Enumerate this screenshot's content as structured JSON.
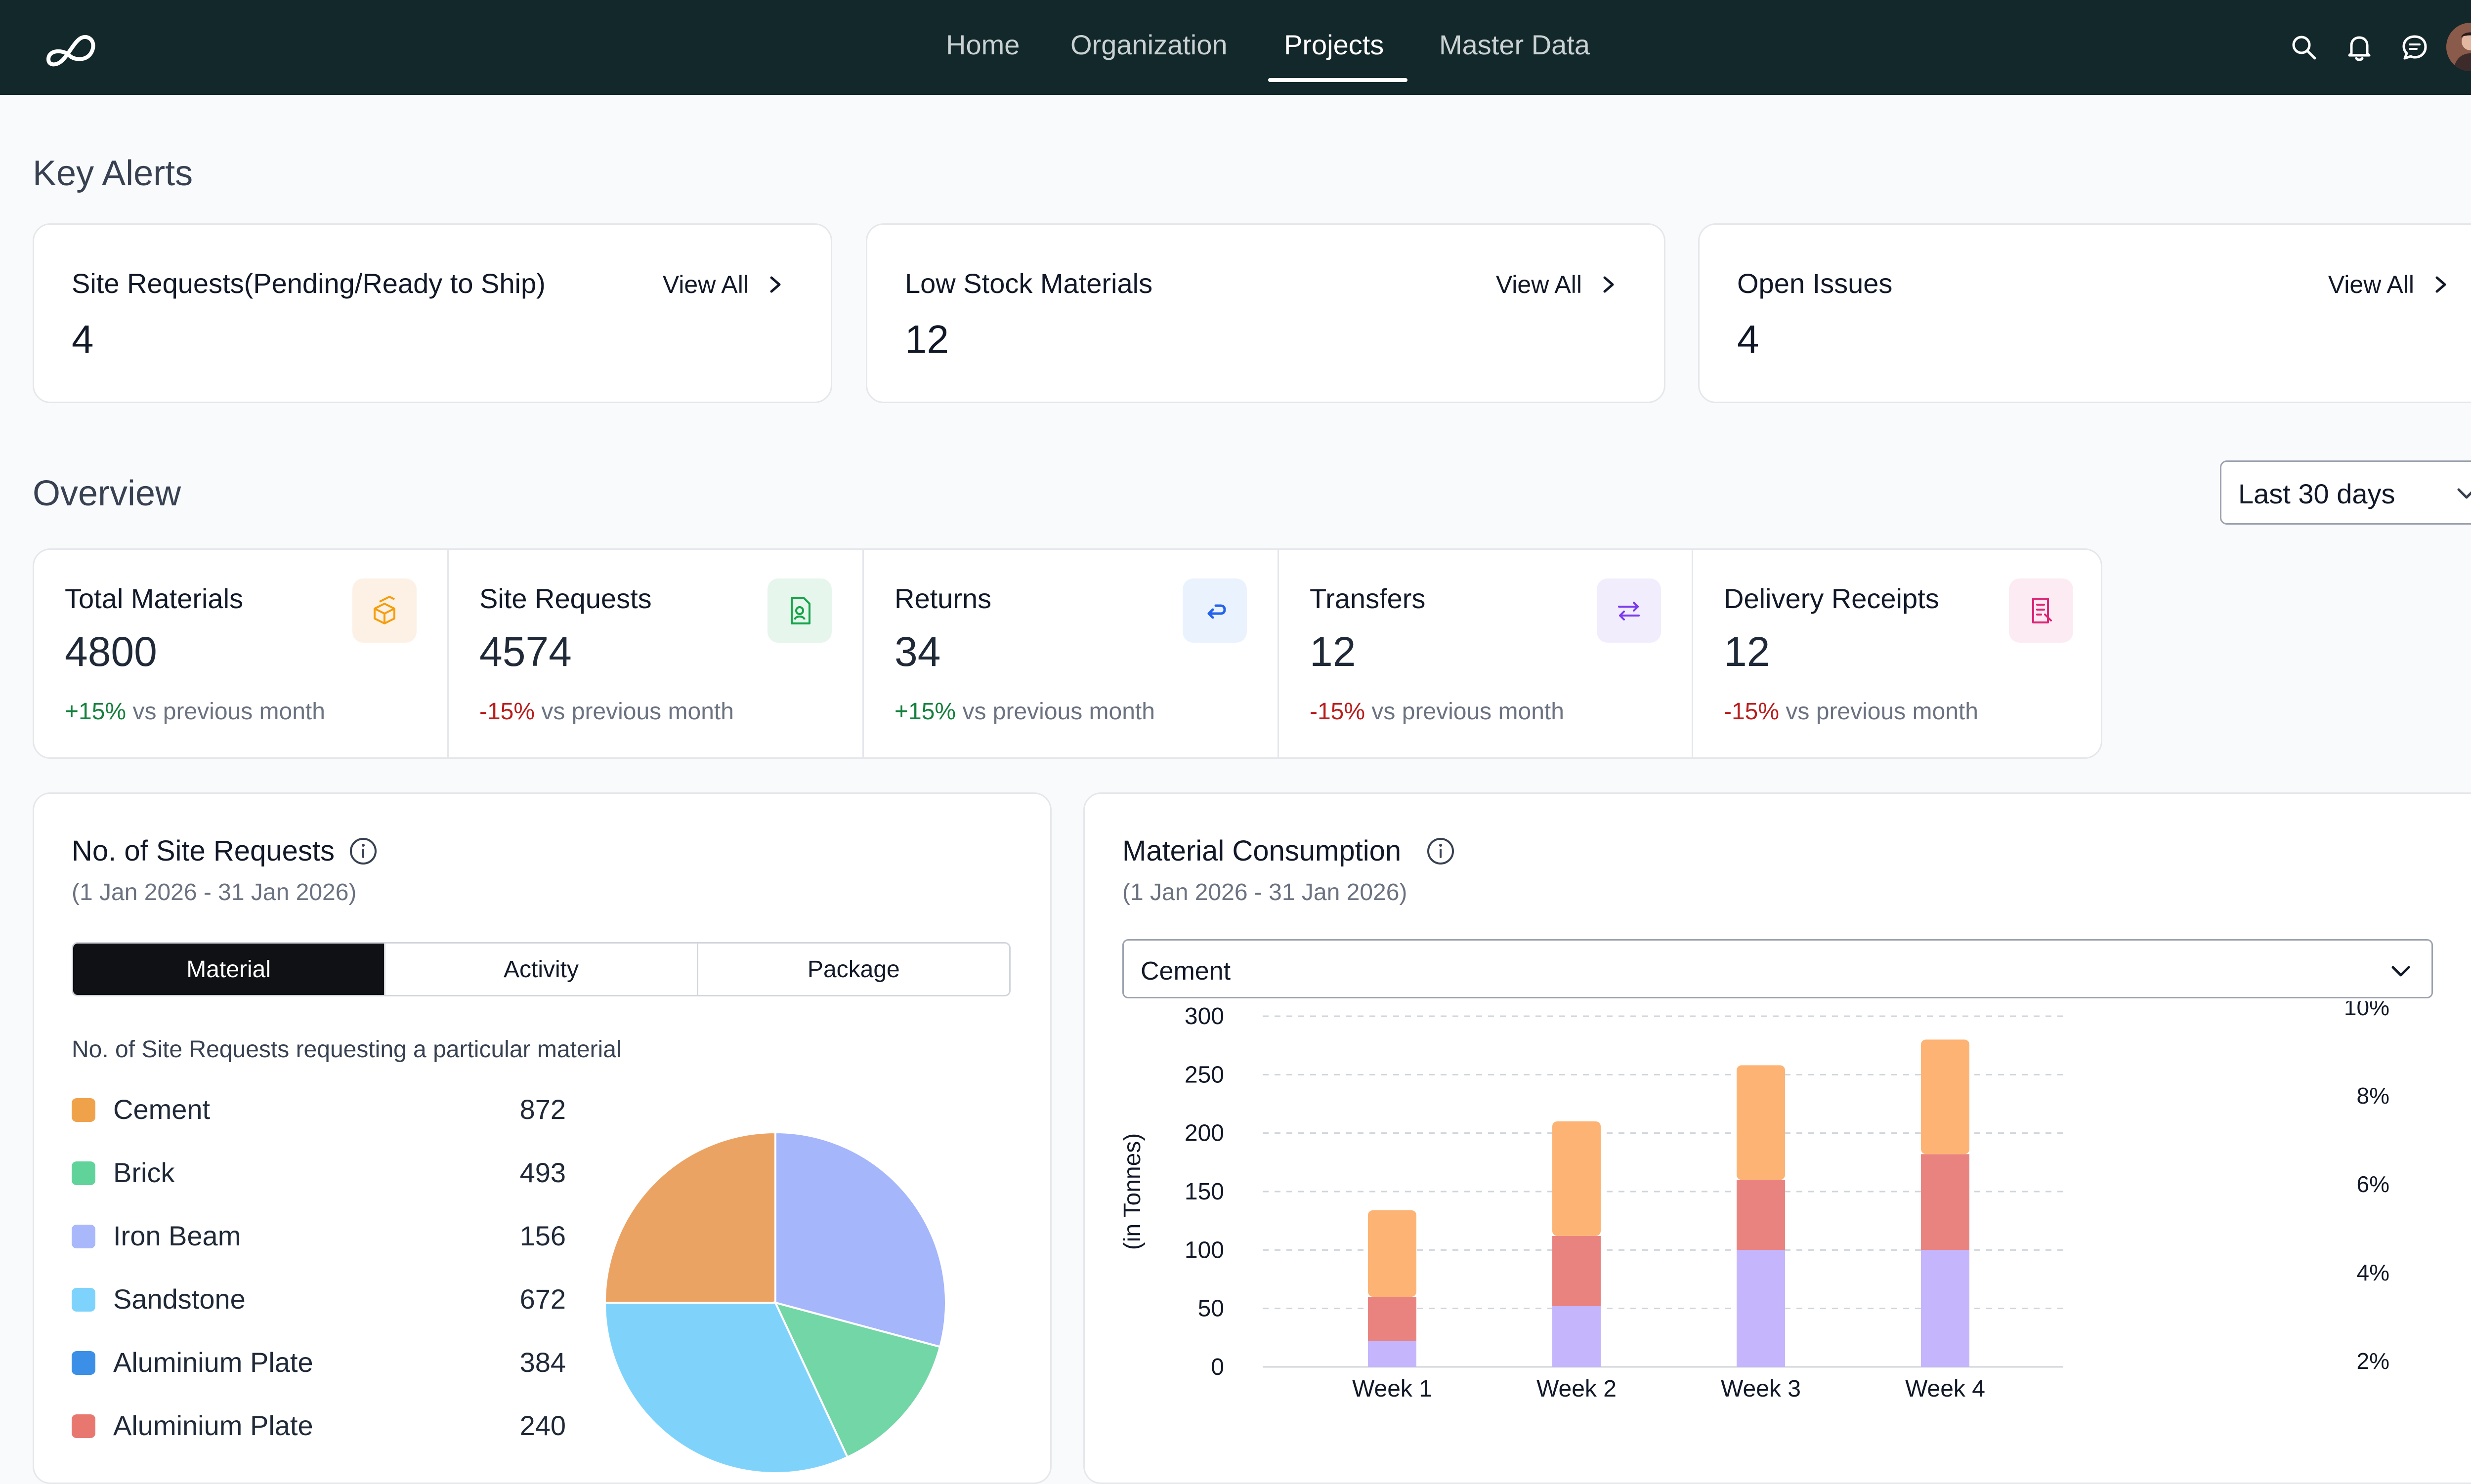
{
  "nav": {
    "links": [
      {
        "label": "Home"
      },
      {
        "label": "Organization"
      },
      {
        "label": "Projects"
      },
      {
        "label": "Master Data"
      }
    ],
    "active": "Projects",
    "icons": [
      "search-icon",
      "bell-icon",
      "chat-icon",
      "avatar"
    ]
  },
  "alerts": {
    "title": "Key Alerts",
    "cards": [
      {
        "title": "Site Requests(Pending/Ready to Ship)",
        "value": "4",
        "link": "View All"
      },
      {
        "title": "Low Stock Materials",
        "value": "12",
        "link": "View All"
      },
      {
        "title": "Open Issues",
        "value": "4",
        "link": "View All"
      }
    ]
  },
  "overview": {
    "title": "Overview",
    "range": "Last 30 days",
    "stats": [
      {
        "label": "Total Materials",
        "value": "4800",
        "change": "+15%",
        "suffix": "vs previous month",
        "icon": "boxes-icon",
        "icon_color": "#f59e0b",
        "icon_bg": "#fdf1e6"
      },
      {
        "label": "Site Requests",
        "value": "4574",
        "change": "-15%",
        "suffix": "vs previous month",
        "icon": "file-user-icon",
        "icon_color": "#16a34a",
        "icon_bg": "#e6f6ec"
      },
      {
        "label": "Returns",
        "value": "34",
        "change": "+15%",
        "suffix": "vs previous month",
        "icon": "return-arrow-icon",
        "icon_color": "#2563eb",
        "icon_bg": "#eaf3fd"
      },
      {
        "label": "Transfers",
        "value": "12",
        "change": "-15%",
        "suffix": "vs previous month",
        "icon": "transfer-arrows-icon",
        "icon_color": "#7c3aed",
        "icon_bg": "#f1edfc"
      },
      {
        "label": "Delivery Receipts",
        "value": "12",
        "change": "-15%",
        "suffix": "vs previous month",
        "icon": "receipt-icon",
        "icon_color": "#db2777",
        "icon_bg": "#fdebf3"
      }
    ],
    "trend_colors": {
      "up": "#15803d",
      "down": "#b91c1c"
    }
  },
  "site_requests": {
    "title": "No. of Site Requests",
    "subtitle": "(1 Jan 2026 - 31 Jan 2026)",
    "tabs": [
      "Material",
      "Activity",
      "Package"
    ],
    "active_tab": "Material",
    "caption": "No. of Site Requests requesting a particular material",
    "legend": [
      {
        "name": "Cement",
        "value": "872",
        "color": "#f0a24b"
      },
      {
        "name": "Brick",
        "value": "493",
        "color": "#5fd39a"
      },
      {
        "name": "Iron Beam",
        "value": "156",
        "color": "#a9b8fb"
      },
      {
        "name": "Sandstone",
        "value": "672",
        "color": "#7dd3fc"
      },
      {
        "name": "Aluminium Plate",
        "value": "384",
        "color": "#3b8fe6"
      },
      {
        "name": "Aluminium Plate",
        "value": "240",
        "color": "#e8786f"
      }
    ]
  },
  "consumption": {
    "title": "Material Consumption",
    "subtitle": "(1 Jan 2026 - 31 Jan 2026)",
    "material": "Cement"
  },
  "chart_data": [
    {
      "type": "pie",
      "title": "No. of Site Requests",
      "visible_slices": [
        {
          "label": "Cement",
          "value": 872,
          "color": "#eba363"
        },
        {
          "label": "Iron Beam",
          "value": 156,
          "color": "#a5b6fb"
        },
        {
          "label": "Brick",
          "value": 493,
          "color": "#72d6a6"
        },
        {
          "label": "Sandstone",
          "value": 672,
          "color": "#7fd3fb"
        }
      ]
    },
    {
      "type": "bar",
      "stacked": true,
      "title": "Material Consumption",
      "categories": [
        "Week 1",
        "Week 2",
        "Week 3",
        "Week 4"
      ],
      "series": [
        {
          "values": [
            22,
            52,
            100,
            100
          ],
          "color": "#c4b5fd"
        },
        {
          "values": [
            38,
            60,
            60,
            82
          ],
          "color": "#e98380"
        },
        {
          "values": [
            74,
            98,
            98,
            98
          ],
          "color": "#fdb374"
        }
      ],
      "ylabel": "(in Tonnes)",
      "ylim": [
        0,
        300
      ],
      "yticks": [
        "300",
        "250",
        "200",
        "150",
        "100",
        "50",
        "0"
      ],
      "y2ticks": [
        "10%",
        "8%",
        "6%",
        "4%",
        "2%"
      ],
      "grid": true
    }
  ]
}
